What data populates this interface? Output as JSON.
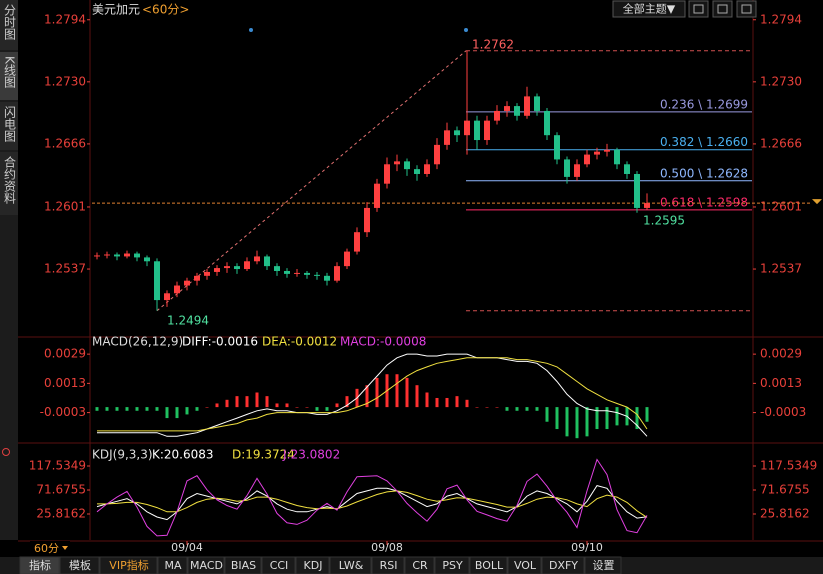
{
  "header": {
    "symbol": "美元加元",
    "period": "<60分>",
    "theme_button": "全部主题▼"
  },
  "sidebar": [
    "分时图",
    "K线图",
    "闪电图",
    "合约资料"
  ],
  "footer": {
    "period": "60分",
    "tabs": [
      "指标",
      "模板",
      "VIP指标",
      "MA",
      "MACD",
      "BIAS",
      "CCI",
      "KDJ",
      "LW&",
      "RSI",
      "CR",
      "PSY",
      "BOLL",
      "VOL",
      "DXFY",
      "设置"
    ]
  },
  "chart_data": [
    {
      "type": "candlestick",
      "up_color": "#ff4040",
      "down_color": "#22c08a",
      "categories": [
        null,
        null,
        null,
        null,
        null,
        null,
        null,
        null,
        null,
        "09/04",
        null,
        null,
        null,
        null,
        null,
        null,
        null,
        null,
        null,
        null,
        null,
        null,
        null,
        null,
        null,
        null,
        null,
        null,
        null,
        "09/08",
        null,
        null,
        null,
        null,
        null,
        null,
        null,
        null,
        null,
        null,
        null,
        null,
        null,
        null,
        null,
        null,
        null,
        null,
        null,
        "09/10",
        null,
        null,
        null,
        null,
        null,
        null
      ],
      "open": [
        1.255,
        1.2551,
        1.2552,
        1.255,
        1.2553,
        1.2549,
        1.2545,
        1.2505,
        1.2512,
        1.252,
        1.2525,
        1.253,
        1.2534,
        1.2538,
        1.254,
        1.2537,
        1.2545,
        1.255,
        1.254,
        1.2535,
        1.2532,
        1.2533,
        1.2531,
        1.253,
        1.2525,
        1.254,
        1.2555,
        1.2575,
        1.26,
        1.2625,
        1.2645,
        1.2648,
        1.264,
        1.2635,
        1.2645,
        1.2665,
        1.268,
        1.2675,
        1.269,
        1.267,
        1.269,
        1.27,
        1.2705,
        1.2695,
        1.2715,
        1.27,
        1.2675,
        1.265,
        1.2632,
        1.2645,
        1.2655,
        1.2658,
        1.266,
        1.2645,
        1.2635,
        1.26
      ],
      "high": [
        1.2554,
        1.2555,
        1.2554,
        1.2556,
        1.2555,
        1.2551,
        1.2548,
        1.2515,
        1.2524,
        1.2528,
        1.2533,
        1.2537,
        1.2541,
        1.2544,
        1.2543,
        1.2549,
        1.2556,
        1.2552,
        1.2543,
        1.2538,
        1.2537,
        1.2535,
        1.2534,
        1.2533,
        1.2544,
        1.2558,
        1.258,
        1.2606,
        1.263,
        1.2652,
        1.2655,
        1.2651,
        1.2644,
        1.265,
        1.2672,
        1.2688,
        1.2684,
        1.2762,
        1.2695,
        1.2695,
        1.2706,
        1.271,
        1.2708,
        1.2725,
        1.2718,
        1.2703,
        1.2678,
        1.2653,
        1.265,
        1.266,
        1.2662,
        1.2666,
        1.2662,
        1.2648,
        1.2638,
        1.2615
      ],
      "low": [
        1.2547,
        1.2548,
        1.2546,
        1.2548,
        1.2545,
        1.254,
        1.2494,
        1.2498,
        1.2508,
        1.2515,
        1.252,
        1.2526,
        1.253,
        1.2533,
        1.2532,
        1.2535,
        1.2542,
        1.2536,
        1.253,
        1.2528,
        1.2529,
        1.2527,
        1.2526,
        1.252,
        1.2523,
        1.2537,
        1.2552,
        1.257,
        1.2596,
        1.262,
        1.2638,
        1.2633,
        1.2628,
        1.2632,
        1.264,
        1.266,
        1.2668,
        1.2655,
        1.266,
        1.2665,
        1.2686,
        1.2694,
        1.269,
        1.2692,
        1.2695,
        1.267,
        1.2645,
        1.2625,
        1.2628,
        1.2642,
        1.265,
        1.2653,
        1.264,
        1.263,
        1.2595,
        1.2598
      ],
      "close": [
        1.2551,
        1.2552,
        1.255,
        1.2553,
        1.2549,
        1.2545,
        1.2505,
        1.2512,
        1.252,
        1.2525,
        1.253,
        1.2534,
        1.2538,
        1.254,
        1.2537,
        1.2545,
        1.255,
        1.254,
        1.2535,
        1.2532,
        1.2533,
        1.2531,
        1.253,
        1.2525,
        1.254,
        1.2555,
        1.2575,
        1.26,
        1.2625,
        1.2645,
        1.2648,
        1.264,
        1.2635,
        1.2645,
        1.2665,
        1.268,
        1.2675,
        1.269,
        1.267,
        1.269,
        1.27,
        1.2705,
        1.2695,
        1.2715,
        1.27,
        1.2675,
        1.265,
        1.2632,
        1.2645,
        1.2655,
        1.2658,
        1.266,
        1.2645,
        1.2635,
        1.26,
        1.2605
      ],
      "ylim": [
        1.2469,
        1.2802
      ],
      "yticks": [
        1.2537,
        1.2601,
        1.2666,
        {
          "value": 1.273,
          "label": "1.2730"
        },
        1.2794
      ],
      "fib": {
        "high": 1.2762,
        "low": 1.2494,
        "recent_low": 1.2595,
        "levels": [
          {
            "label": "0.236 \\ 1.2699",
            "value": 1.2699,
            "color": "#9a9ae0"
          },
          {
            "label": "0.382 \\ 1.2660",
            "value": 1.266,
            "color": "#4ab0f0"
          },
          {
            "label": "0.500 \\ 1.2628",
            "value": 1.2628,
            "color": "#8fb8ff"
          },
          {
            "label": "0.618 \\ 1.2598",
            "value": 1.2598,
            "color": "#ff2a68"
          }
        ]
      }
    },
    {
      "type": "macd",
      "title": "MACD(26,12,9)",
      "ylim": [
        -0.0018,
        0.0034
      ],
      "yticks": [
        -0.0003,
        0.0013,
        0.0029
      ],
      "series": [
        {
          "name": "DIFF:-0.0016",
          "color": "#ffffff",
          "values": [
            -0.0014,
            -0.0014,
            -0.0014,
            -0.0014,
            -0.0014,
            -0.0014,
            -0.0014,
            -0.0016,
            -0.0016,
            -0.0015,
            -0.0014,
            -0.0012,
            -0.001,
            -0.0008,
            -0.0006,
            -0.0004,
            -0.0002,
            -0.0001,
            -0.0002,
            -0.0002,
            -0.0003,
            -0.0003,
            -0.0004,
            -0.0004,
            -0.0002,
            0.0001,
            0.0005,
            0.0011,
            0.0017,
            0.0023,
            0.0027,
            0.0029,
            0.0029,
            0.0028,
            0.0028,
            0.0029,
            0.0029,
            0.0029,
            0.0027,
            0.0027,
            0.0027,
            0.0026,
            0.0025,
            0.0025,
            0.0024,
            0.002,
            0.0014,
            0.0007,
            0.0002,
            -0.0001,
            -0.0002,
            -0.0002,
            -0.0003,
            -0.0005,
            -0.001,
            -0.0016
          ]
        },
        {
          "name": "DEA:-0.0012",
          "color": "#f0e040",
          "values": [
            -0.0013,
            -0.0013,
            -0.0013,
            -0.0013,
            -0.0013,
            -0.0013,
            -0.0013,
            -0.0013,
            -0.0013,
            -0.0013,
            -0.0013,
            -0.0012,
            -0.0011,
            -0.001,
            -0.0009,
            -0.0007,
            -0.0006,
            -0.0004,
            -0.0003,
            -0.0003,
            -0.0003,
            -0.0003,
            -0.0003,
            -0.0003,
            -0.0003,
            -0.0002,
            0,
            0.0002,
            0.0005,
            0.0009,
            0.0013,
            0.0017,
            0.002,
            0.0022,
            0.0024,
            0.0025,
            0.0026,
            0.0027,
            0.0027,
            0.0027,
            0.0027,
            0.0027,
            0.0026,
            0.0026,
            0.0025,
            0.0024,
            0.0022,
            0.0018,
            0.0014,
            0.001,
            0.0007,
            0.0004,
            0.0002,
            0,
            -0.0004,
            -0.0012
          ]
        }
      ],
      "histogram": {
        "name": "MACD:-0.0008",
        "color": "#e040e0",
        "up_color": "#ff3030",
        "down_color": "#20c060",
        "values": [
          -0.0002,
          -0.0002,
          -0.0002,
          -0.0002,
          -0.0002,
          -0.0002,
          -0.0002,
          -0.0006,
          -0.0006,
          -0.0004,
          -0.0002,
          0,
          0.0002,
          0.0004,
          0.0006,
          0.0006,
          0.0008,
          0.0006,
          0.0002,
          0.0002,
          0,
          0,
          -0.0002,
          -0.0002,
          0.0002,
          0.0006,
          0.001,
          0.0012,
          0.0016,
          0.0018,
          0.0018,
          0.0016,
          0.0012,
          0.0008,
          0.0005,
          0.0005,
          0.0006,
          0.0004,
          0,
          0,
          0,
          -0.0002,
          -0.0002,
          -0.0002,
          -0.0002,
          -0.0008,
          -0.0012,
          -0.0016,
          -0.0017,
          -0.0016,
          -0.0012,
          -0.0012,
          -0.001,
          -0.001,
          -0.0012,
          -0.0008
        ]
      }
    },
    {
      "type": "kdj",
      "title": "KDJ(9,3,3)",
      "ylim": [
        -23.9,
        148.1
      ],
      "yticks": [
        25.8162,
        71.6755,
        117.5349
      ],
      "series": [
        {
          "name": "K:20.6083",
          "color": "#ffffff",
          "values": [
            40,
            45,
            50,
            55,
            45,
            30,
            20,
            15,
            30,
            55,
            65,
            60,
            55,
            50,
            45,
            55,
            70,
            60,
            45,
            35,
            30,
            30,
            35,
            40,
            35,
            50,
            65,
            70,
            75,
            75,
            70,
            60,
            50,
            40,
            45,
            60,
            65,
            55,
            45,
            40,
            35,
            30,
            40,
            60,
            70,
            65,
            55,
            45,
            30,
            50,
            80,
            75,
            50,
            30,
            18,
            20.6083
          ]
        },
        {
          "name": "D:19.3724",
          "color": "#f0e040",
          "values": [
            45,
            45,
            46,
            48,
            48,
            44,
            38,
            30,
            30,
            38,
            48,
            54,
            56,
            54,
            50,
            52,
            58,
            58,
            54,
            48,
            42,
            38,
            36,
            37,
            36,
            41,
            49,
            56,
            63,
            68,
            70,
            67,
            61,
            54,
            50,
            53,
            57,
            56,
            52,
            48,
            44,
            39,
            39,
            46,
            54,
            58,
            57,
            53,
            45,
            40,
            55,
            62,
            58,
            48,
            32,
            19.3724
          ]
        },
        {
          "name": "J:23.0802",
          "color": "#e040e0",
          "values": [
            30,
            45,
            58,
            69,
            39,
            2,
            -16,
            -15,
            30,
            89,
            99,
            72,
            53,
            42,
            35,
            61,
            94,
            64,
            27,
            9,
            6,
            14,
            33,
            46,
            33,
            68,
            97,
            98,
            99,
            89,
            70,
            46,
            28,
            12,
            35,
            74,
            81,
            53,
            31,
            24,
            17,
            12,
            42,
            88,
            102,
            79,
            51,
            29,
            0,
            70,
            130,
            101,
            34,
            -6,
            -10,
            23.0802
          ]
        }
      ]
    }
  ]
}
